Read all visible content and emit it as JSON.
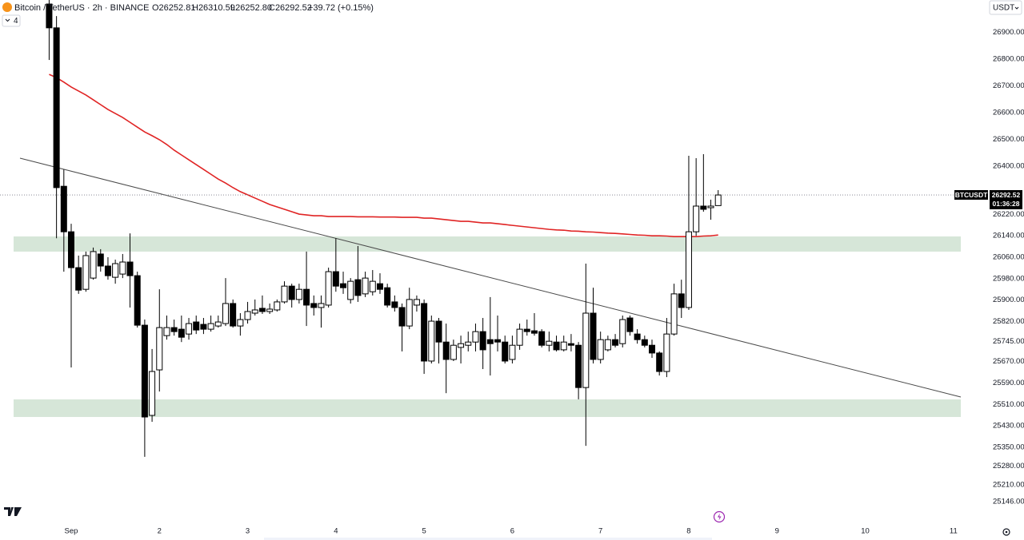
{
  "chart_data": {
    "type": "candlestick",
    "title": "Bitcoin / TetherUS · 2h · BINANCE",
    "ohlc": [
      "O26252.81",
      "H26310.59",
      "L26252.80",
      "C26292.52",
      "+39.72 (+0.15%)"
    ],
    "categories": [
      null,
      null,
      null,
      "Sep",
      null,
      null,
      null,
      null,
      null,
      null,
      null,
      null,
      null,
      null,
      null,
      "2",
      null,
      null,
      null,
      null,
      null,
      null,
      null,
      null,
      null,
      null,
      null,
      "3",
      null,
      null,
      null,
      null,
      null,
      null,
      null,
      null,
      null,
      null,
      null,
      "4",
      null,
      null,
      null,
      null,
      null,
      null,
      null,
      null,
      null,
      null,
      null,
      "5",
      null,
      null,
      null,
      null,
      null,
      null,
      null,
      null,
      null,
      null,
      null,
      "6",
      null,
      null,
      null,
      null,
      null,
      null,
      null,
      null,
      null,
      null,
      null,
      "7",
      null,
      null,
      null,
      null,
      null,
      null,
      null,
      null,
      null,
      null,
      null,
      "8",
      null,
      null,
      null,
      null,
      null,
      null,
      null,
      null,
      null,
      null,
      null,
      "9",
      null,
      null,
      null,
      null,
      null,
      null,
      null,
      null,
      null,
      null,
      null,
      "10",
      null,
      null,
      null,
      null,
      null,
      null,
      null,
      null,
      null,
      null,
      null,
      "11"
    ],
    "candles": {
      "name": "BTCUSDT",
      "up_color": "#ffffff",
      "down_color": "#000000",
      "open": [
        27006,
        26917,
        26325,
        26155,
        26021,
        25940,
        25982,
        26072,
        26027,
        25985,
        25997,
        26042,
        25991,
        25806,
        25469,
        25639,
        25767,
        25797,
        25791,
        25773,
        25818,
        25809,
        25791,
        25803,
        25812,
        25887,
        25803,
        25827,
        25851,
        25869,
        25857,
        25863,
        25893,
        25952,
        25902,
        25940,
        25887,
        25872,
        25881,
        26006,
        25961,
        25902,
        25976,
        25923,
        25931,
        25961,
        25946,
        25893,
        25872,
        25803,
        25881,
        25887,
        25672,
        25821,
        25743,
        25678,
        25723,
        25731,
        25743,
        25782,
        25752,
        25752,
        25743,
        25678,
        25731,
        25791,
        25785,
        25782,
        25731,
        25743,
        25714,
        25737,
        25731,
        25573,
        25851,
        25678,
        25714,
        25752,
        25737,
        25833,
        25773,
        25752,
        25731,
        25702,
        25633,
        25773,
        25923,
        25872,
        26155,
        26251,
        26245,
        26252.81,
        null,
        null,
        null,
        null,
        null,
        null,
        null,
        null,
        null,
        null,
        null,
        null,
        null,
        null,
        null,
        null,
        null,
        null,
        null,
        null,
        null,
        null,
        null,
        null,
        null,
        null,
        null,
        null,
        null,
        null,
        null,
        null
      ],
      "high": [
        27021,
        26961,
        26388,
        26185,
        26066,
        26081,
        26096,
        26090,
        26060,
        26051,
        26072,
        26149,
        26006,
        25827,
        25717,
        25940,
        25842,
        25827,
        25842,
        25833,
        25842,
        25833,
        25842,
        25842,
        25982,
        25902,
        25851,
        25893,
        25902,
        25917,
        25887,
        25902,
        25970,
        25961,
        25961,
        26081,
        25917,
        25917,
        26021,
        26131,
        26006,
        25982,
        26102,
        26006,
        26012,
        26000,
        25961,
        25917,
        25887,
        25946,
        25917,
        25902,
        25842,
        25833,
        25812,
        25752,
        25767,
        25782,
        25812,
        25833,
        25911,
        25842,
        25767,
        25767,
        25812,
        25827,
        25851,
        25791,
        25782,
        25767,
        25767,
        25773,
        25743,
        26036,
        25946,
        25782,
        25767,
        25773,
        25842,
        25842,
        25791,
        25767,
        25752,
        25708,
        25833,
        25961,
        25976,
        26439,
        26430,
        26445,
        26275,
        26310.59,
        null,
        null,
        null,
        null,
        null,
        null,
        null,
        null,
        null,
        null,
        null,
        null,
        null,
        null,
        null,
        null,
        null,
        null,
        null,
        null,
        null,
        null,
        null,
        null,
        null,
        null,
        null,
        null,
        null,
        null,
        null,
        null
      ],
      "low": [
        26797,
        26131,
        26006,
        25648,
        25923,
        25931,
        25976,
        26006,
        25976,
        25961,
        25982,
        25872,
        25797,
        25314,
        25445,
        25558,
        25752,
        25767,
        25743,
        25752,
        25773,
        25773,
        25782,
        25797,
        25803,
        25797,
        25767,
        25812,
        25842,
        25848,
        25848,
        25857,
        25887,
        25872,
        25887,
        25803,
        25842,
        25797,
        25872,
        25931,
        25923,
        25887,
        25893,
        25911,
        25917,
        25923,
        25872,
        25857,
        25708,
        25791,
        25857,
        25624,
        25663,
        25663,
        25552,
        25672,
        25663,
        25708,
        25708,
        25642,
        25618,
        25708,
        25663,
        25663,
        25714,
        25767,
        25767,
        25723,
        25708,
        25708,
        25708,
        25708,
        25529,
        25355,
        25663,
        25663,
        25708,
        25723,
        25723,
        25767,
        25737,
        25723,
        25684,
        25618,
        25612,
        25767,
        25833,
        25863,
        26140,
        26230,
        26200,
        26252.8,
        null,
        null,
        null,
        null,
        null,
        null,
        null,
        null,
        null,
        null,
        null,
        null,
        null,
        null,
        null,
        null,
        null,
        null,
        null,
        null,
        null,
        null,
        null,
        null,
        null,
        null,
        null,
        null,
        null,
        null,
        null,
        null
      ],
      "close": [
        26917,
        26320,
        26155,
        26021,
        25937,
        26066,
        26081,
        26027,
        25991,
        26036,
        26042,
        25991,
        25806,
        25463,
        25633,
        25797,
        25797,
        25782,
        25761,
        25812,
        25788,
        25791,
        25812,
        25818,
        25887,
        25803,
        25827,
        25857,
        25863,
        25857,
        25866,
        25893,
        25952,
        25902,
        25940,
        25881,
        25872,
        25887,
        26006,
        25952,
        25946,
        25970,
        25917,
        25982,
        25970,
        25940,
        25881,
        25872,
        25803,
        25902,
        25902,
        25672,
        25821,
        25743,
        25678,
        25731,
        25737,
        25743,
        25782,
        25714,
        25737,
        25743,
        25672,
        25731,
        25791,
        25782,
        25776,
        25731,
        25746,
        25714,
        25743,
        25731,
        25573,
        25851,
        25678,
        25752,
        25752,
        25731,
        25827,
        25782,
        25752,
        25731,
        25702,
        25633,
        25773,
        25923,
        25872,
        26155,
        26251,
        26239,
        26251,
        26292.52,
        null,
        null,
        null,
        null,
        null,
        null,
        null,
        null,
        null,
        null,
        null,
        null,
        null,
        null,
        null,
        null,
        null,
        null,
        null,
        null,
        null,
        null,
        null,
        null,
        null,
        null,
        null,
        null,
        null,
        null,
        null,
        null
      ]
    },
    "moving_average": {
      "color": "#e02424",
      "values": [
        26743,
        26731,
        26714,
        26696,
        26681,
        26666,
        26648,
        26630,
        26612,
        26597,
        26582,
        26564,
        26546,
        26528,
        26514,
        26499,
        26481,
        26460,
        26442,
        26424,
        26406,
        26388,
        26370,
        26352,
        26337,
        26320,
        26305,
        26293,
        26281,
        26269,
        26257,
        26248,
        26239,
        26230,
        26221,
        26218,
        26215,
        26215,
        26212,
        26212,
        26212,
        26212,
        26211,
        26211,
        26211,
        26210,
        26210,
        26210,
        26209,
        26209,
        26209,
        26206,
        26206,
        26203,
        26200,
        26197,
        26194,
        26194,
        26191,
        26188,
        26188,
        26185,
        26182,
        26179,
        26176,
        26173,
        26170,
        26167,
        26164,
        26162,
        26161,
        26158,
        26157,
        26155,
        26154,
        26152,
        26150,
        26149,
        26147,
        26145,
        26143,
        26142,
        26140,
        26140,
        26139,
        26137,
        26137,
        26137,
        26137,
        26139,
        26140,
        26143,
        null,
        null,
        null,
        null,
        null,
        null,
        null,
        null,
        null,
        null,
        null,
        null,
        null,
        null,
        null,
        null,
        null,
        null,
        null,
        null,
        null,
        null,
        null,
        null,
        null,
        null,
        null,
        null,
        null,
        null,
        null,
        null
      ]
    },
    "ylim": [
      25075,
      27021
    ],
    "yticks": [
      {
        "value": 26900,
        "label": "26900.00"
      },
      {
        "value": 26800,
        "label": "26800.00"
      },
      {
        "value": 26700,
        "label": "26700.00"
      },
      {
        "value": 26600,
        "label": "26600.00"
      },
      {
        "value": 26500,
        "label": "26500.00"
      },
      {
        "value": 26400,
        "label": "26400.00"
      },
      {
        "value": 26220,
        "label": "26220.00"
      },
      {
        "value": 26140,
        "label": "26140.00"
      },
      {
        "value": 26060,
        "label": "26060.00"
      },
      {
        "value": 25980,
        "label": "25980.00"
      },
      {
        "value": 25900,
        "label": "25900.00"
      },
      {
        "value": 25820,
        "label": "25820.00"
      },
      {
        "value": 25745,
        "label": "25745.00"
      },
      {
        "value": 25670,
        "label": "25670.00"
      },
      {
        "value": 25590,
        "label": "25590.00"
      },
      {
        "value": 25510,
        "label": "25510.00"
      },
      {
        "value": 25430,
        "label": "25430.00"
      },
      {
        "value": 25350,
        "label": "25350.00"
      },
      {
        "value": 25280,
        "label": "25280.00"
      },
      {
        "value": 25210,
        "label": "25210.00"
      },
      {
        "value": 25146,
        "label": "25146.00"
      }
    ],
    "grid": false
  },
  "ui": {
    "currency": "USDT",
    "indicators": "4",
    "countdown": "01:36:28"
  }
}
